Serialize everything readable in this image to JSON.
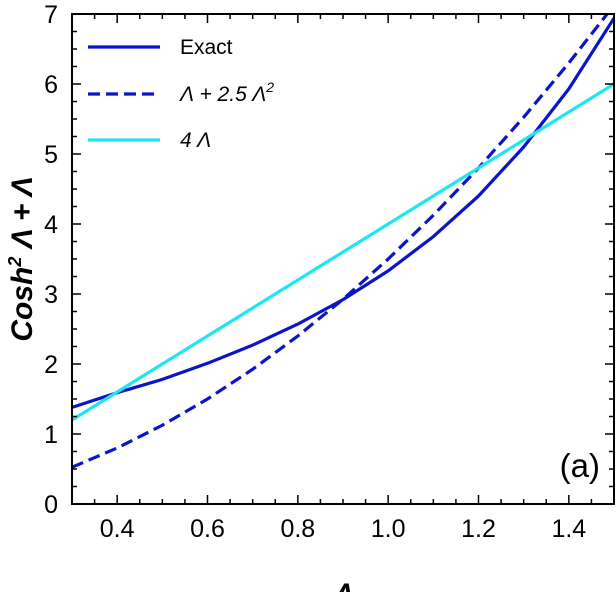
{
  "chart_data": {
    "type": "line",
    "title": "",
    "xlabel": "Λ",
    "ylabel_parts": {
      "base": "Cosh",
      "sup": "2",
      "rest": " Λ + Λ"
    },
    "panel_label": "(a)",
    "xlim": [
      0.3,
      1.5
    ],
    "ylim": [
      0,
      7
    ],
    "xticks": [
      0.4,
      0.6,
      0.8,
      1.0,
      1.2,
      1.4
    ],
    "xtick_labels": [
      "0.4",
      "0.6",
      "0.8",
      "1.0",
      "1.2",
      "1.4"
    ],
    "yticks": [
      0,
      1,
      2,
      3,
      4,
      5,
      6,
      7
    ],
    "ytick_labels": [
      "0",
      "1",
      "2",
      "3",
      "4",
      "5",
      "6",
      "7"
    ],
    "grid": false,
    "legend_position": "top-left",
    "x": [
      0.3,
      0.4,
      0.5,
      0.6,
      0.7,
      0.8,
      0.9,
      1.0,
      1.1,
      1.2,
      1.3,
      1.4,
      1.5
    ],
    "series": [
      {
        "key": "exact",
        "name": "Exact",
        "color": "#0a14c8",
        "dash": "solid",
        "values": [
          1.38,
          1.59,
          1.78,
          2.01,
          2.27,
          2.57,
          2.92,
          3.33,
          3.82,
          4.4,
          5.1,
          5.93,
          6.94
        ]
      },
      {
        "key": "approx",
        "name_parts": {
          "base": "Λ + 2.5 Λ",
          "sup": "2"
        },
        "color": "#0a14c8",
        "dash": "dashed",
        "values": [
          0.525,
          0.8,
          1.125,
          1.5,
          1.925,
          2.4,
          2.925,
          3.5,
          4.125,
          4.8,
          5.525,
          6.3,
          7.125
        ]
      },
      {
        "key": "linear",
        "name": "4 Λ",
        "color": "#1ee6ee",
        "dash": "solid",
        "values": [
          1.2,
          1.6,
          2.0,
          2.4,
          2.8,
          3.2,
          3.6,
          4.0,
          4.4,
          4.8,
          5.2,
          5.6,
          6.0
        ]
      }
    ]
  }
}
